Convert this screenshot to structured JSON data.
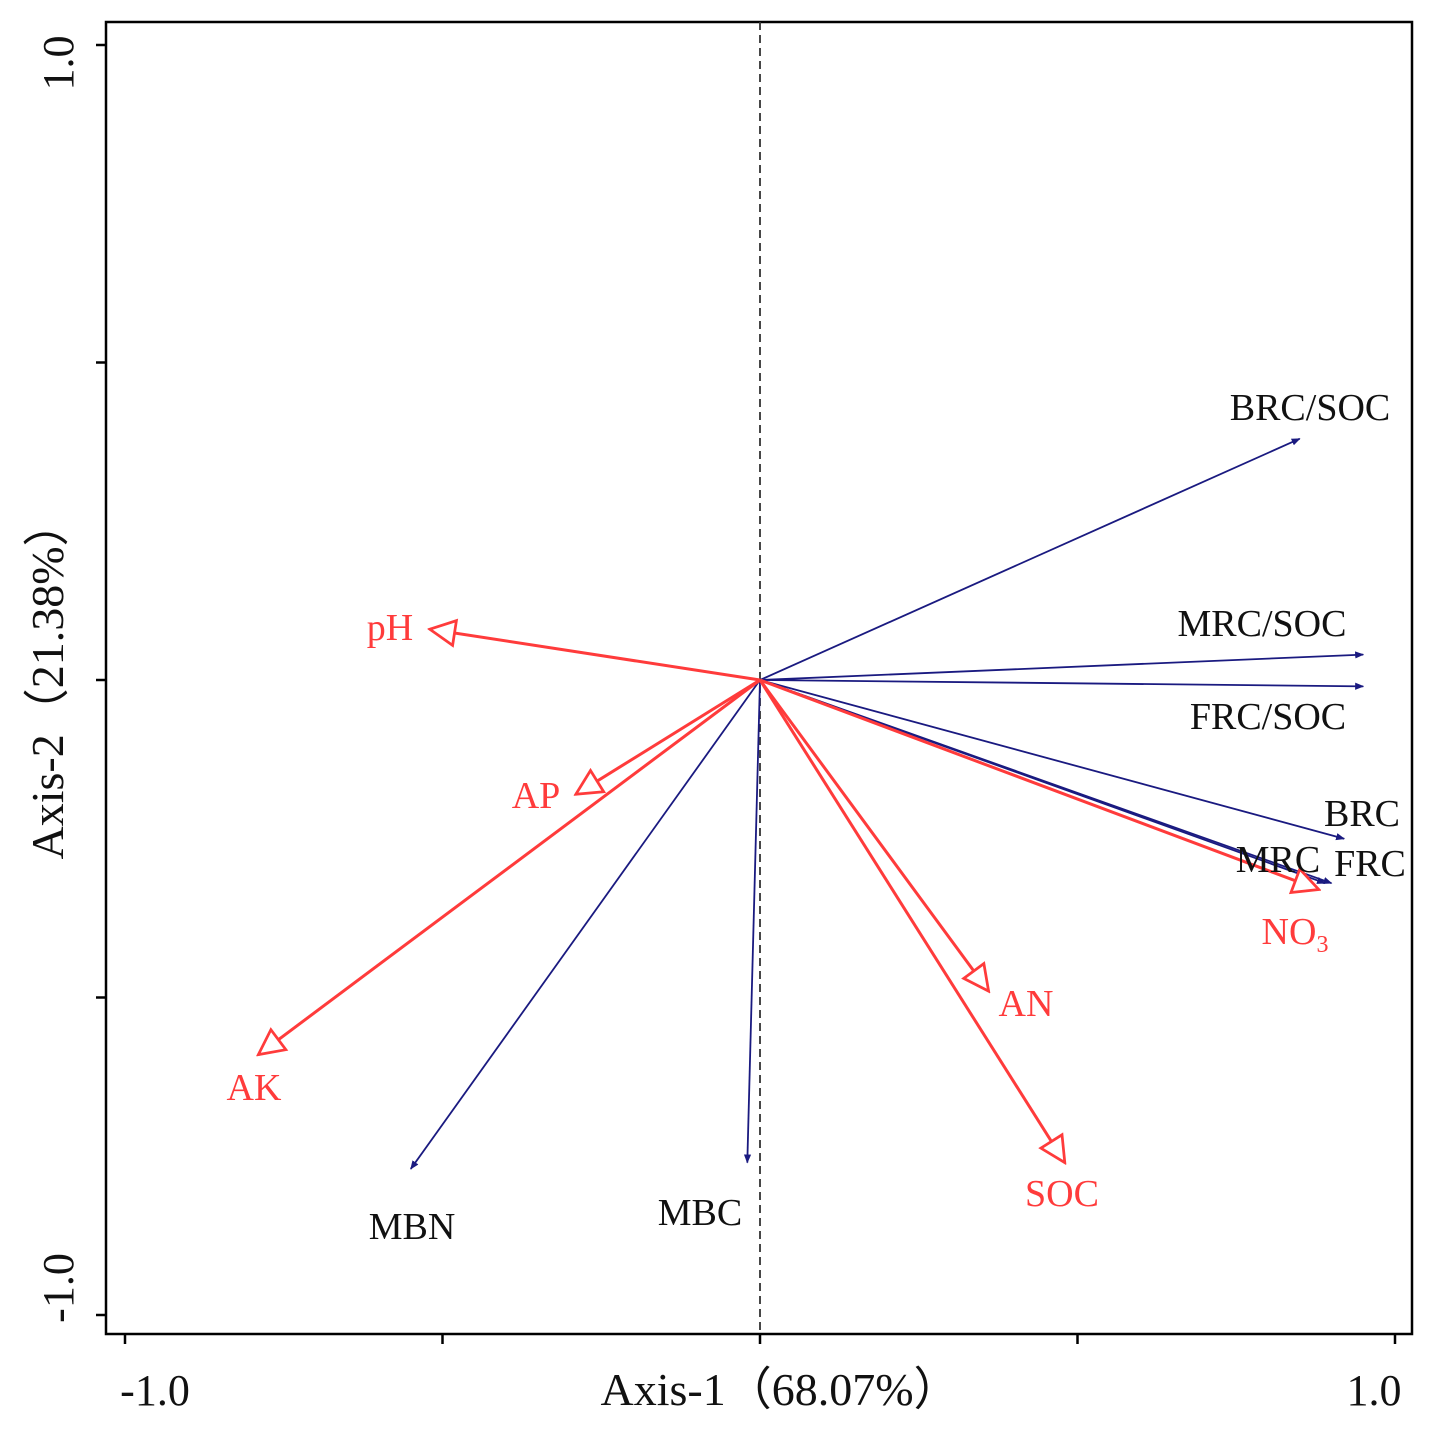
{
  "chart_data": {
    "type": "biplot",
    "xlabel": "Axis-1（68.07%）",
    "ylabel": "Axis-2（21.38%）",
    "xlim": [
      -1.0,
      1.0
    ],
    "ylim": [
      -1.0,
      1.0
    ],
    "x_tick_labels": [
      "-1.0",
      "1.0"
    ],
    "y_tick_labels": [
      "1.0",
      "-1.0"
    ],
    "x_ticks": [
      -1.0,
      -0.5,
      0.0,
      0.5,
      1.0
    ],
    "y_ticks": [
      1.0,
      0.5,
      0.0,
      -0.5,
      -1.0
    ],
    "colors": {
      "response": "#1a1a80",
      "explanatory": "#ff3b3b"
    },
    "response_variables": [
      {
        "name": "BRC/SOC",
        "x": 0.85,
        "y": 0.38
      },
      {
        "name": "MRC/SOC",
        "x": 0.95,
        "y": 0.04
      },
      {
        "name": "FRC/SOC",
        "x": 0.95,
        "y": -0.01
      },
      {
        "name": "BRC",
        "x": 0.92,
        "y": -0.25
      },
      {
        "name": "MRC",
        "x": 0.89,
        "y": -0.32
      },
      {
        "name": "FRC",
        "x": 0.9,
        "y": -0.32
      },
      {
        "name": "MBN",
        "x": -0.55,
        "y": -0.77
      },
      {
        "name": "MBC",
        "x": -0.02,
        "y": -0.76
      }
    ],
    "explanatory_variables": [
      {
        "name": "pH",
        "x": -0.52,
        "y": 0.08
      },
      {
        "name": "AP",
        "x": -0.29,
        "y": -0.18
      },
      {
        "name": "AK",
        "x": -0.79,
        "y": -0.59
      },
      {
        "name": "AN",
        "x": 0.36,
        "y": -0.49
      },
      {
        "name": "SOC",
        "x": 0.48,
        "y": -0.76
      },
      {
        "name": "NO3",
        "label_main": "NO",
        "label_sub": "3",
        "x": 0.88,
        "y": -0.33
      }
    ]
  }
}
